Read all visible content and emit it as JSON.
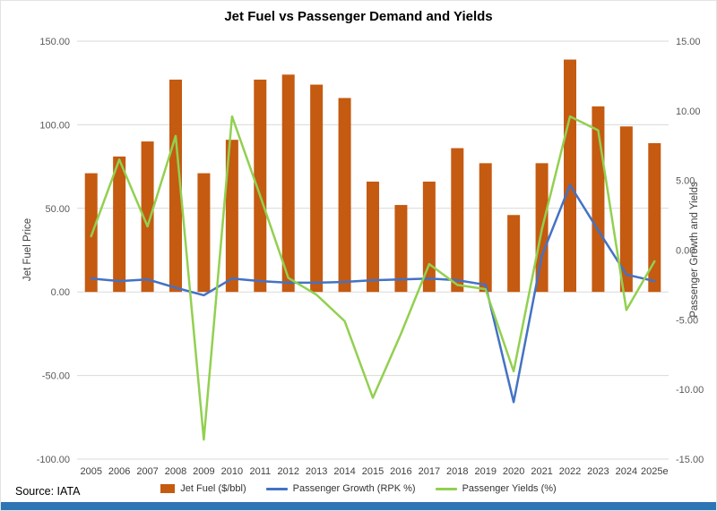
{
  "chart_data": {
    "type": "combo",
    "title": "Jet Fuel vs Passenger Demand and Yields",
    "categories": [
      "2005",
      "2006",
      "2007",
      "2008",
      "2009",
      "2010",
      "2011",
      "2012",
      "2013",
      "2014",
      "2015",
      "2016",
      "2017",
      "2018",
      "2019",
      "2020",
      "2021",
      "2022",
      "2023",
      "2024",
      "2025e"
    ],
    "series": [
      {
        "name": "Jet Fuel ($/bbl)",
        "type": "bar",
        "axis": "left",
        "color": "#C55A11",
        "values": [
          71,
          81,
          90,
          127,
          71,
          91,
          127,
          130,
          124,
          116,
          66,
          52,
          66,
          86,
          77,
          46,
          77,
          139,
          111,
          99,
          89
        ]
      },
      {
        "name": "Passenger Growth (RPK %)",
        "type": "line",
        "axis": "left",
        "color": "#4472C4",
        "values": [
          8.0,
          6.5,
          7.5,
          2.5,
          -2.0,
          8.0,
          6.5,
          5.5,
          5.5,
          6.0,
          7.0,
          7.5,
          8.0,
          7.0,
          4.3,
          -65.9,
          21.7,
          64.0,
          36.9,
          10.4,
          6.5
        ]
      },
      {
        "name": "Passenger Yields (%)",
        "type": "line",
        "axis": "right",
        "color": "#92D050",
        "values": [
          1.0,
          6.5,
          1.7,
          8.2,
          -13.6,
          9.6,
          3.9,
          -2.0,
          -3.2,
          -5.1,
          -10.6,
          -6.0,
          -1.0,
          -2.5,
          -2.8,
          -8.7,
          1.5,
          9.6,
          8.6,
          -4.3,
          -0.8
        ]
      }
    ],
    "left_axis": {
      "label": "Jet Fuel Price",
      "min": -100,
      "max": 150,
      "step": 50
    },
    "right_axis": {
      "label": "Passenger Growth and Yields",
      "min": -15,
      "max": 15,
      "step": 5
    },
    "grid": true,
    "legend_position": "bottom"
  },
  "footer": {
    "source": "Source: IATA"
  },
  "colors": {
    "gridline": "#D9D9D9",
    "tick_text": "#595959",
    "x_label_text": "#404040",
    "bottom_strip": "#2E75B6",
    "background": "#FFFFFF"
  }
}
